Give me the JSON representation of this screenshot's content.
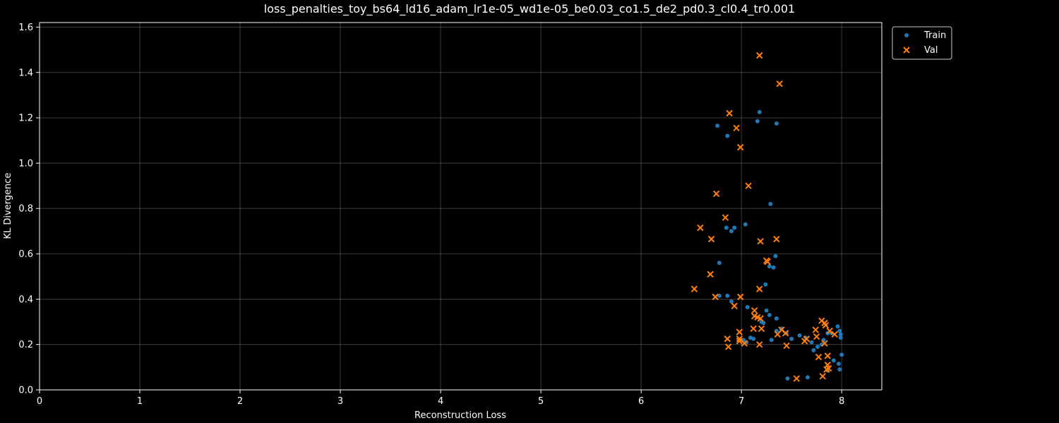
{
  "chart_data": {
    "type": "scatter",
    "title": "loss_penalties_toy_bs64_ld16_adam_lr1e-05_wd1e-05_be0.03_co1.5_de2_pd0.3_cl0.4_tr0.001",
    "xlabel": "Reconstruction Loss",
    "ylabel": "KL Divergence",
    "xlim": [
      0,
      8.4
    ],
    "ylim": [
      0,
      1.62
    ],
    "xticks": [
      "0",
      "1",
      "2",
      "3",
      "4",
      "5",
      "6",
      "7",
      "8"
    ],
    "yticks": [
      "0.0",
      "0.2",
      "0.4",
      "0.6",
      "0.8",
      "1.0",
      "1.2",
      "1.4",
      "1.6"
    ],
    "grid": true,
    "legend_position": "outside-top-right",
    "series": [
      {
        "name": "Train",
        "marker": "circle",
        "color": "#1f77b4",
        "points": [
          [
            6.76,
            1.165
          ],
          [
            6.86,
            1.12
          ],
          [
            7.16,
            1.185
          ],
          [
            7.18,
            1.225
          ],
          [
            7.35,
            1.175
          ],
          [
            7.29,
            0.82
          ],
          [
            7.04,
            0.73
          ],
          [
            6.85,
            0.715
          ],
          [
            6.93,
            0.715
          ],
          [
            6.9,
            0.7
          ],
          [
            7.34,
            0.59
          ],
          [
            6.78,
            0.56
          ],
          [
            7.28,
            0.545
          ],
          [
            7.32,
            0.54
          ],
          [
            7.24,
            0.465
          ],
          [
            6.78,
            0.415
          ],
          [
            6.86,
            0.415
          ],
          [
            6.9,
            0.39
          ],
          [
            7.06,
            0.365
          ],
          [
            7.25,
            0.35
          ],
          [
            7.28,
            0.33
          ],
          [
            7.35,
            0.315
          ],
          [
            7.2,
            0.3
          ],
          [
            7.22,
            0.295
          ],
          [
            7.3,
            0.22
          ],
          [
            7.09,
            0.23
          ],
          [
            7.12,
            0.225
          ],
          [
            7.02,
            0.22
          ],
          [
            7.05,
            0.21
          ],
          [
            7.35,
            0.26
          ],
          [
            7.4,
            0.27
          ],
          [
            7.45,
            0.25
          ],
          [
            7.5,
            0.225
          ],
          [
            7.58,
            0.24
          ],
          [
            7.64,
            0.23
          ],
          [
            7.7,
            0.21
          ],
          [
            7.72,
            0.175
          ],
          [
            7.76,
            0.19
          ],
          [
            7.8,
            0.2
          ],
          [
            7.82,
            0.22
          ],
          [
            7.86,
            0.25
          ],
          [
            7.9,
            0.25
          ],
          [
            7.96,
            0.28
          ],
          [
            7.98,
            0.26
          ],
          [
            7.99,
            0.245
          ],
          [
            7.99,
            0.23
          ],
          [
            8.0,
            0.155
          ],
          [
            7.92,
            0.13
          ],
          [
            7.97,
            0.115
          ],
          [
            7.98,
            0.09
          ],
          [
            7.86,
            0.085
          ],
          [
            7.66,
            0.055
          ],
          [
            7.46,
            0.05
          ]
        ]
      },
      {
        "name": "Val",
        "marker": "x",
        "color": "#ff7f0e",
        "points": [
          [
            7.18,
            1.475
          ],
          [
            7.38,
            1.35
          ],
          [
            6.88,
            1.22
          ],
          [
            6.95,
            1.155
          ],
          [
            6.99,
            1.07
          ],
          [
            7.07,
            0.9
          ],
          [
            6.75,
            0.865
          ],
          [
            6.84,
            0.76
          ],
          [
            6.59,
            0.715
          ],
          [
            6.7,
            0.665
          ],
          [
            7.35,
            0.665
          ],
          [
            7.19,
            0.655
          ],
          [
            7.25,
            0.57
          ],
          [
            7.26,
            0.565
          ],
          [
            6.69,
            0.51
          ],
          [
            6.53,
            0.445
          ],
          [
            7.18,
            0.445
          ],
          [
            6.74,
            0.41
          ],
          [
            6.99,
            0.41
          ],
          [
            6.93,
            0.37
          ],
          [
            7.13,
            0.35
          ],
          [
            7.16,
            0.32
          ],
          [
            7.13,
            0.325
          ],
          [
            7.19,
            0.315
          ],
          [
            6.98,
            0.255
          ],
          [
            7.12,
            0.27
          ],
          [
            7.2,
            0.27
          ],
          [
            6.98,
            0.225
          ],
          [
            6.98,
            0.215
          ],
          [
            7.03,
            0.205
          ],
          [
            6.86,
            0.225
          ],
          [
            6.87,
            0.19
          ],
          [
            7.18,
            0.2
          ],
          [
            7.36,
            0.245
          ],
          [
            7.4,
            0.265
          ],
          [
            7.44,
            0.25
          ],
          [
            7.45,
            0.195
          ],
          [
            7.63,
            0.215
          ],
          [
            7.65,
            0.225
          ],
          [
            7.74,
            0.265
          ],
          [
            7.75,
            0.235
          ],
          [
            7.8,
            0.305
          ],
          [
            7.83,
            0.295
          ],
          [
            7.84,
            0.285
          ],
          [
            7.88,
            0.26
          ],
          [
            7.93,
            0.245
          ],
          [
            7.83,
            0.205
          ],
          [
            7.86,
            0.15
          ],
          [
            7.77,
            0.145
          ],
          [
            7.86,
            0.11
          ],
          [
            7.85,
            0.09
          ],
          [
            7.87,
            0.095
          ],
          [
            7.81,
            0.06
          ],
          [
            7.55,
            0.05
          ]
        ]
      }
    ]
  }
}
